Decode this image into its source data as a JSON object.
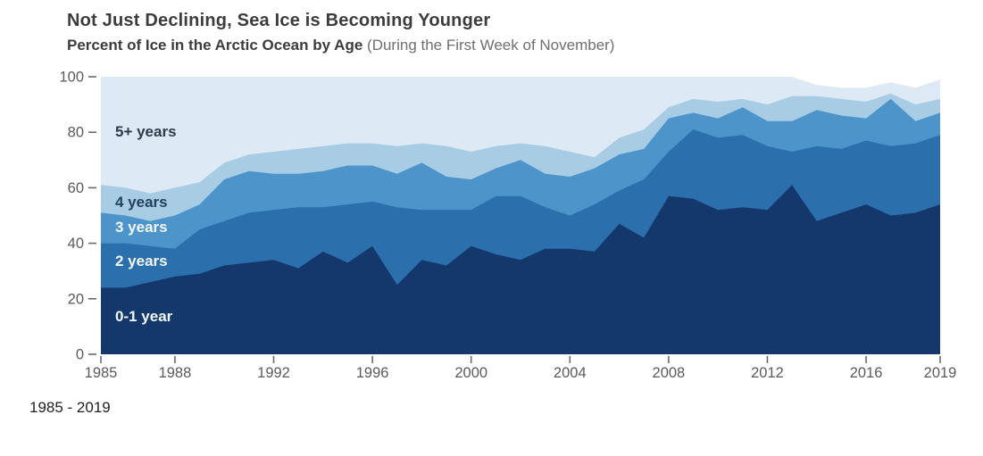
{
  "header": {
    "title": "Not Just Declining, Sea Ice is Becoming Younger",
    "subtitle_bold": "Percent of Ice in the Arctic Ocean by Age",
    "subtitle_note": "(During the First Week of November)"
  },
  "caption": "1985 - 2019",
  "colors": {
    "age_0_1": "#14386b",
    "age_2": "#2b6fad",
    "age_3": "#4c94ca",
    "age_4": "#a7cce4",
    "age_5plus": "#dde9f5",
    "tick_stroke": "#6a6a6a",
    "tick_text": "#5a5a5a"
  },
  "chart_data": {
    "type": "area",
    "stacked": true,
    "title": "Percent of Ice in the Arctic Ocean by Age",
    "xlabel": "",
    "ylabel": "",
    "xlim": [
      1985,
      2019
    ],
    "ylim": [
      0,
      100
    ],
    "grid": false,
    "legend_position": "inline-band-labels",
    "xticks": [
      1985,
      1988,
      1992,
      1996,
      2000,
      2004,
      2008,
      2012,
      2016,
      2019
    ],
    "yticks": [
      0,
      20,
      40,
      60,
      80,
      100
    ],
    "x": [
      1985,
      1986,
      1987,
      1988,
      1989,
      1990,
      1991,
      1992,
      1993,
      1994,
      1995,
      1996,
      1997,
      1998,
      1999,
      2000,
      2001,
      2002,
      2003,
      2004,
      2005,
      2006,
      2007,
      2008,
      2009,
      2010,
      2011,
      2012,
      2013,
      2014,
      2015,
      2016,
      2017,
      2018,
      2019
    ],
    "series": [
      {
        "name": "0-1 year",
        "color": "#14386b",
        "values": [
          24,
          24,
          26,
          28,
          29,
          32,
          33,
          34,
          31,
          37,
          33,
          39,
          25,
          34,
          32,
          39,
          36,
          34,
          38,
          38,
          37,
          47,
          42,
          57,
          56,
          52,
          53,
          52,
          61,
          48,
          51,
          54,
          50,
          51,
          54
        ]
      },
      {
        "name": "2 years",
        "color": "#2b6fad",
        "values": [
          16,
          16,
          13,
          10,
          16,
          16,
          18,
          18,
          22,
          16,
          21,
          16,
          28,
          18,
          20,
          13,
          21,
          23,
          15,
          12,
          17,
          12,
          21,
          16,
          25,
          26,
          26,
          23,
          12,
          27,
          23,
          23,
          25,
          25,
          25
        ]
      },
      {
        "name": "3 years",
        "color": "#4c94ca",
        "values": [
          11,
          10,
          9,
          12,
          9,
          15,
          15,
          13,
          12,
          13,
          14,
          13,
          12,
          17,
          12,
          11,
          10,
          13,
          12,
          14,
          13,
          13,
          11,
          12,
          6,
          7,
          10,
          9,
          11,
          13,
          12,
          8,
          17,
          8,
          8
        ]
      },
      {
        "name": "4 years",
        "color": "#a7cce4",
        "values": [
          10,
          10,
          10,
          10,
          8,
          6,
          6,
          8,
          9,
          9,
          8,
          8,
          10,
          7,
          11,
          10,
          8,
          6,
          10,
          9,
          4,
          6,
          7,
          4,
          5,
          6,
          3,
          6,
          9,
          5,
          6,
          6,
          2,
          6,
          5
        ]
      },
      {
        "name": "5+ years",
        "color": "#dde9f5",
        "values": [
          39,
          40,
          42,
          40,
          38,
          31,
          28,
          27,
          26,
          25,
          24,
          24,
          25,
          24,
          25,
          27,
          25,
          24,
          25,
          27,
          29,
          22,
          19,
          11,
          8,
          9,
          8,
          10,
          7,
          4,
          4,
          5,
          4,
          6,
          7
        ]
      }
    ]
  }
}
